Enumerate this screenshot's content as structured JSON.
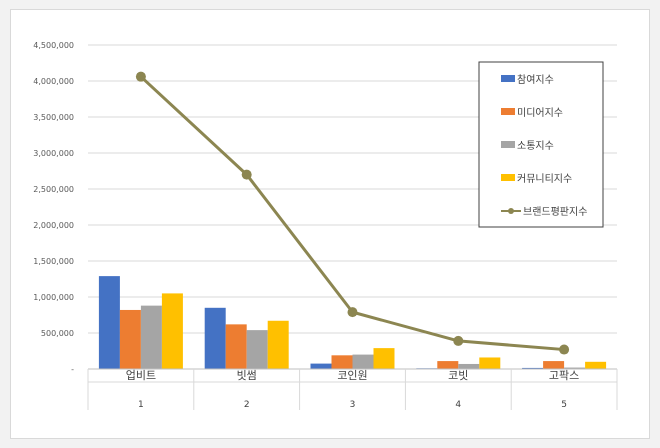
{
  "chart_data": {
    "type": "bar",
    "categories": [
      "업비트",
      "빗썸",
      "코인원",
      "코빗",
      "고팍스"
    ],
    "category_numbers": [
      "1",
      "2",
      "3",
      "4",
      "5"
    ],
    "ylim": [
      0,
      4500000
    ],
    "yticks": [
      0,
      500000,
      1000000,
      1500000,
      2000000,
      2500000,
      3000000,
      3500000,
      4000000,
      4500000
    ],
    "ytick_labels": [
      "-",
      "500,000",
      "1,000,000",
      "1,500,000",
      "2,000,000",
      "2,500,000",
      "3,000,000",
      "3,500,000",
      "4,000,000",
      "4,500,000"
    ],
    "grid": true,
    "legend_position": "top-right",
    "series": [
      {
        "name": "참여지수",
        "type": "bar",
        "color": "#4472c4",
        "values": [
          1290000,
          850000,
          75000,
          10000,
          15000
        ]
      },
      {
        "name": "미디어지수",
        "type": "bar",
        "color": "#ed7d31",
        "values": [
          820000,
          620000,
          190000,
          110000,
          110000
        ]
      },
      {
        "name": "소통지수",
        "type": "bar",
        "color": "#a5a5a5",
        "values": [
          880000,
          540000,
          200000,
          70000,
          20000
        ]
      },
      {
        "name": "커뮤니티지수",
        "type": "bar",
        "color": "#ffc000",
        "values": [
          1050000,
          670000,
          290000,
          160000,
          100000
        ]
      },
      {
        "name": "브랜드평판지수",
        "type": "line",
        "color": "#8c8651",
        "values": [
          4060000,
          2700000,
          790000,
          390000,
          270000
        ]
      }
    ]
  }
}
